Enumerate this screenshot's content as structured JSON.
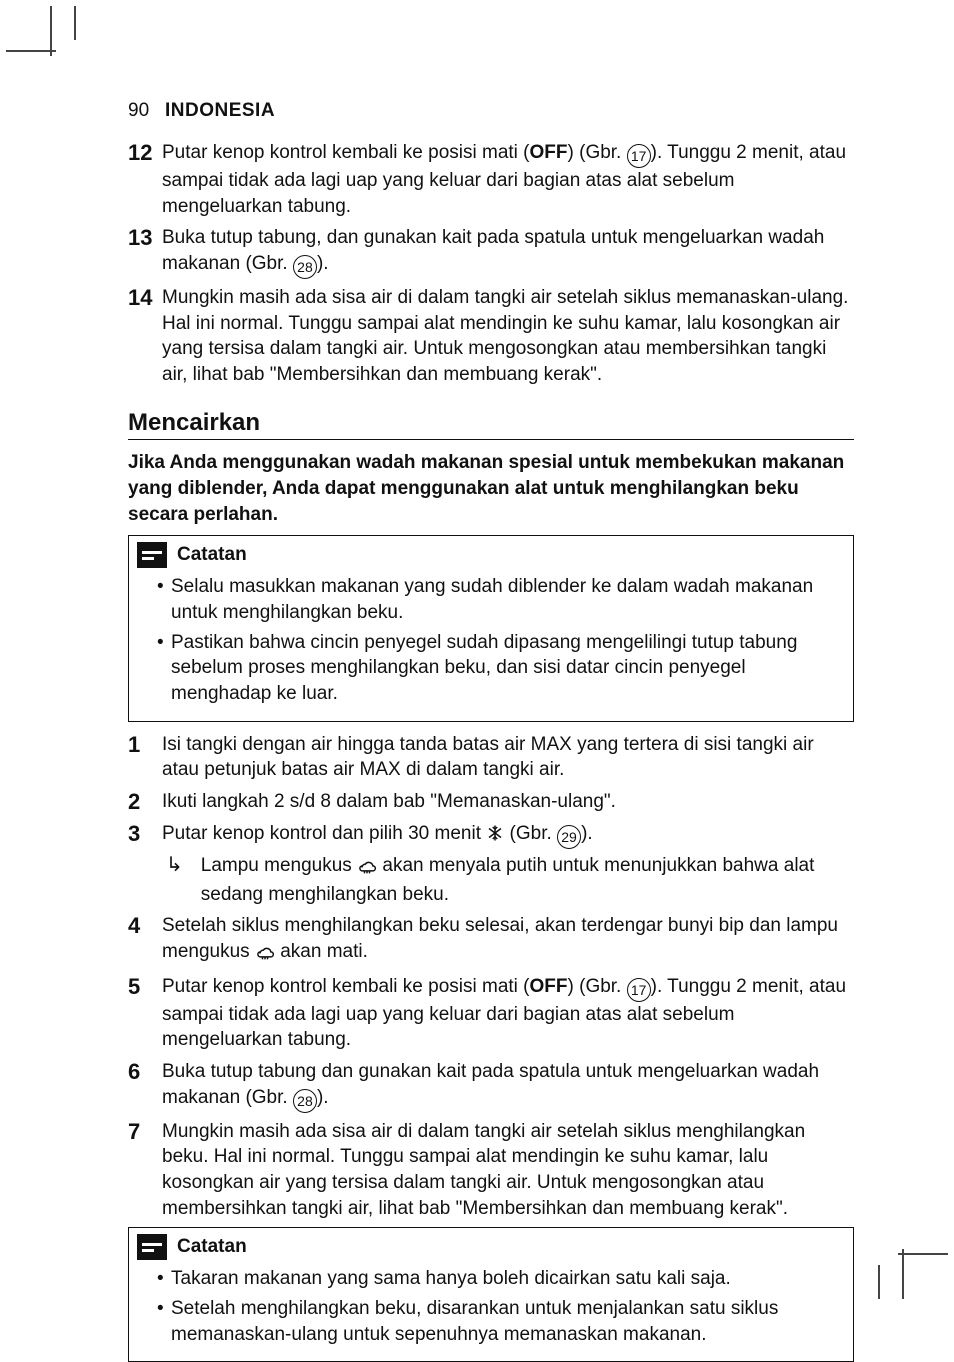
{
  "header": {
    "page_number": "90",
    "lang": "INDONESIA"
  },
  "figrefs": {
    "r17": "17",
    "r28": "28",
    "r29": "29"
  },
  "labels": {
    "off": "OFF",
    "gbr": "Gbr.",
    "catatan": "Catatan"
  },
  "icons": {
    "snow_alt": "snowflake defrost icon",
    "steam_alt": "steaming cloud icon",
    "note_alt": "note lines icon",
    "arrow": "↳"
  },
  "top_list": [
    {
      "n": "12",
      "pre": "Putar kenop kontrol kembali ke posisi mati (",
      "mid": ") (",
      "post": "). Tunggu 2 menit, atau sampai tidak ada lagi uap yang keluar dari bagian atas alat sebelum mengeluarkan tabung.",
      "fig": "r17"
    },
    {
      "n": "13",
      "pre": "Buka tutup tabung, dan gunakan kait pada spatula untuk mengeluarkan wadah makanan (",
      "mid": "",
      "post": ").",
      "fig": "r28"
    },
    {
      "n": "14",
      "plain": "Mungkin masih ada sisa air di dalam tangki air setelah siklus memanaskan-ulang. Hal ini normal. Tunggu sampai alat mendingin ke suhu kamar, lalu kosongkan air yang tersisa dalam tangki air. Untuk mengosongkan atau membersihkan tangki air, lihat bab \"Membersihkan dan membuang kerak\"."
    }
  ],
  "section": {
    "title": "Mencairkan",
    "intro": "Jika Anda menggunakan wadah makanan spesial untuk membekukan makanan yang diblender, Anda dapat menggunakan alat untuk menghilangkan beku secara perlahan."
  },
  "note1": [
    "Selalu masukkan makanan yang sudah diblender ke dalam wadah makanan untuk menghilangkan beku.",
    "Pastikan bahwa cincin penyegel sudah dipasang mengelilingi tutup tabung sebelum proses menghilangkan beku, dan sisi datar cincin penyegel menghadap ke luar."
  ],
  "main_list": [
    {
      "n": "1",
      "plain": "Isi tangki dengan air hingga tanda batas air MAX yang tertera di sisi tangki air atau petunjuk batas air MAX di dalam tangki air."
    },
    {
      "n": "2",
      "plain": "Ikuti langkah 2 s/d 8 dalam bab \"Memanaskan-ulang\"."
    },
    {
      "n": "3",
      "segs": [
        "Putar kenop kontrol dan pilih 30 menit ",
        " (",
        "",
        ")."
      ],
      "icon": "snow",
      "fig": "r29",
      "sub": {
        "segs": [
          "Lampu mengukus ",
          " akan menyala putih untuk menunjukkan bahwa alat sedang menghilangkan beku."
        ],
        "icon": "steam"
      }
    },
    {
      "n": "4",
      "segs": [
        "Setelah siklus menghilangkan beku selesai, akan terdengar bunyi bip dan lampu mengukus ",
        " akan mati."
      ],
      "icon": "steam"
    },
    {
      "n": "5",
      "pre": "Putar kenop kontrol kembali ke posisi mati (",
      "mid": ") (",
      "post": "). Tunggu 2 menit, atau sampai tidak ada lagi uap yang keluar dari bagian atas alat sebelum mengeluarkan tabung.",
      "fig": "r17"
    },
    {
      "n": "6",
      "pre": "Buka tutup tabung dan gunakan kait pada spatula untuk mengeluarkan wadah makanan (",
      "mid": "",
      "post": ").",
      "fig": "r28"
    },
    {
      "n": "7",
      "plain": "Mungkin masih ada sisa air di dalam tangki air setelah siklus menghilangkan beku. Hal ini normal. Tunggu sampai alat mendingin ke suhu kamar, lalu kosongkan air yang tersisa dalam tangki air. Untuk mengosongkan atau membersihkan tangki air, lihat bab \"Membersihkan dan membuang kerak\"."
    }
  ],
  "note2": [
    "Takaran makanan yang sama hanya boleh dicairkan satu kali saja.",
    "Setelah menghilangkan beku, disarankan untuk menjalankan satu siklus memanaskan-ulang untuk sepenuhnya memanaskan makanan."
  ]
}
